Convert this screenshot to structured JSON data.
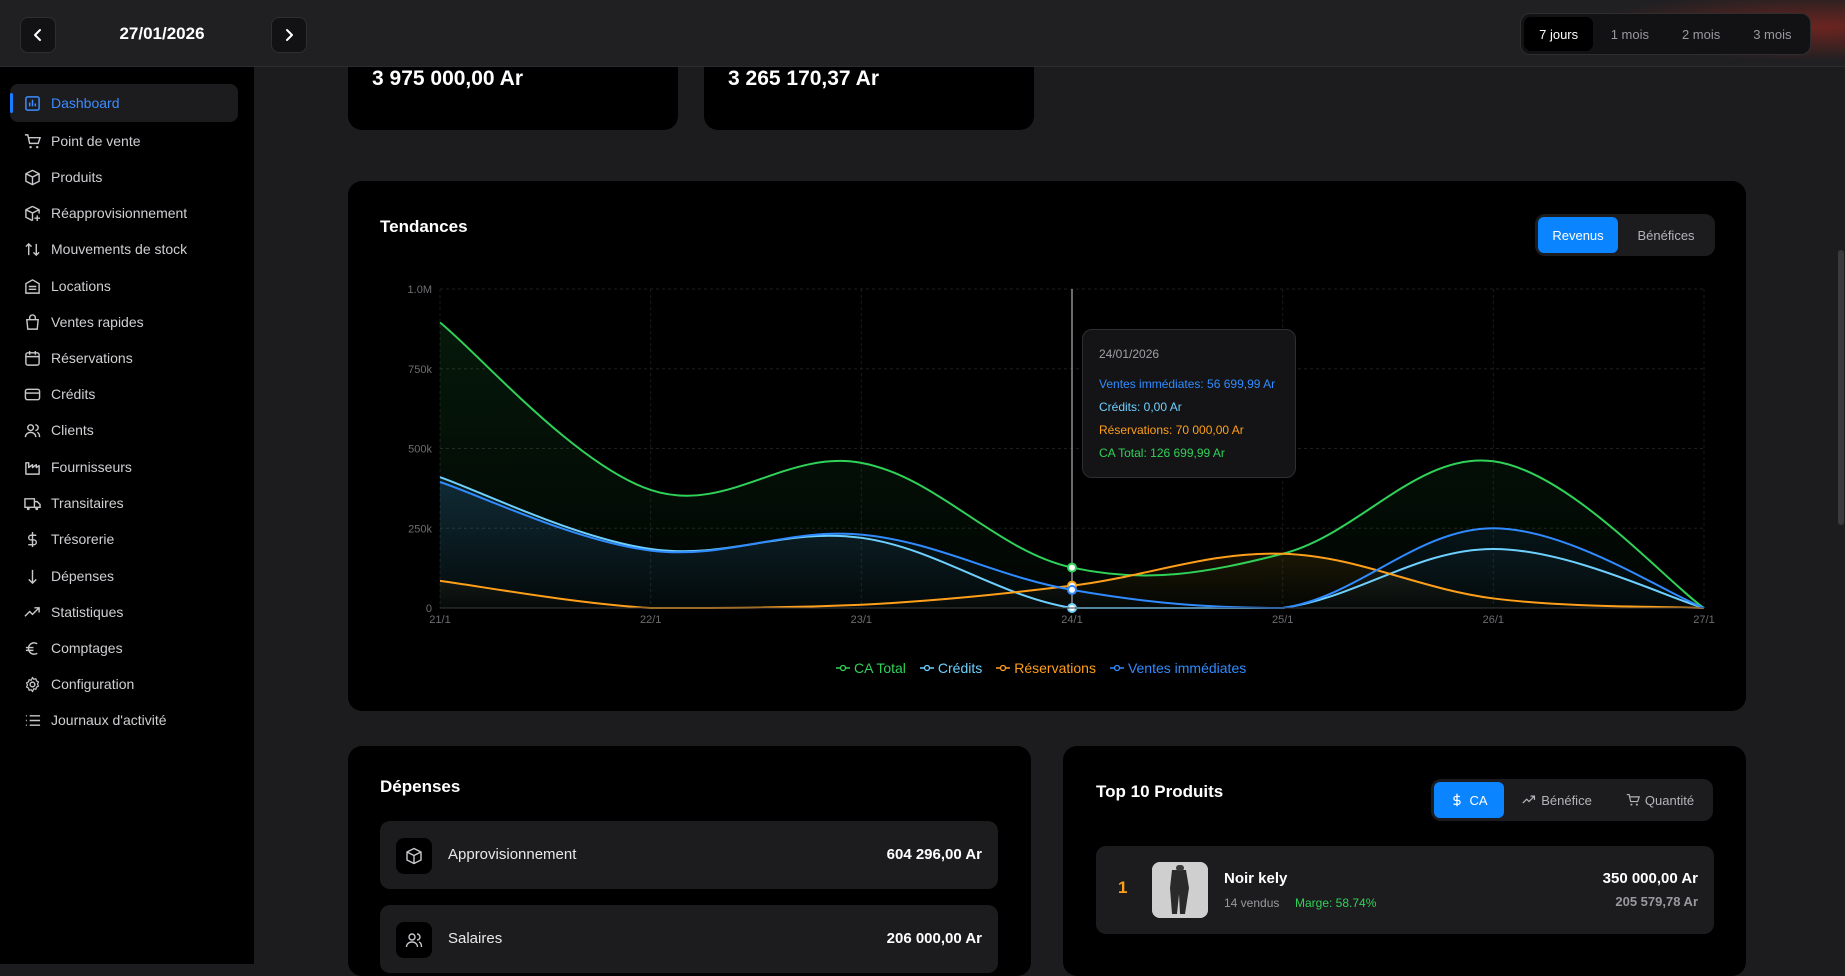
{
  "header": {
    "date": "27/01/2026",
    "ranges": [
      "7 jours",
      "1 mois",
      "2 mois",
      "3 mois"
    ],
    "active_range": "7 jours"
  },
  "sidebar": {
    "items": [
      {
        "label": "Dashboard",
        "icon": "chart-bar-icon"
      },
      {
        "label": "Point de vente",
        "icon": "cart-icon"
      },
      {
        "label": "Produits",
        "icon": "box-icon"
      },
      {
        "label": "Réapprovisionnement",
        "icon": "box-plus-icon"
      },
      {
        "label": "Mouvements de stock",
        "icon": "arrows-up-down-icon"
      },
      {
        "label": "Locations",
        "icon": "building-icon"
      },
      {
        "label": "Ventes rapides",
        "icon": "shopping-bag-icon"
      },
      {
        "label": "Réservations",
        "icon": "calendar-icon"
      },
      {
        "label": "Crédits",
        "icon": "credit-card-icon"
      },
      {
        "label": "Clients",
        "icon": "users-icon"
      },
      {
        "label": "Fournisseurs",
        "icon": "factory-icon"
      },
      {
        "label": "Transitaires",
        "icon": "truck-icon"
      },
      {
        "label": "Trésorerie",
        "icon": "dollar-icon"
      },
      {
        "label": "Dépenses",
        "icon": "arrow-down-icon"
      },
      {
        "label": "Statistiques",
        "icon": "trending-up-icon"
      },
      {
        "label": "Comptages",
        "icon": "euro-icon"
      },
      {
        "label": "Configuration",
        "icon": "gear-icon"
      },
      {
        "label": "Journaux d'activité",
        "icon": "list-icon"
      }
    ]
  },
  "kpis": [
    "3 975 000,00 Ar",
    "3 265 170,37 Ar"
  ],
  "trends": {
    "title": "Tendances",
    "toggle": [
      "Revenus",
      "Bénéfices"
    ],
    "active_toggle": "Revenus",
    "tooltip": {
      "date": "24/01/2026",
      "lines": [
        {
          "text": "Ventes immédiates: 56 699,99 Ar",
          "color": "#2f8bff"
        },
        {
          "text": "Crédits: 0,00 Ar",
          "color": "#6ed0ff"
        },
        {
          "text": "Réservations: 70 000,00 Ar",
          "color": "#ff9f1a"
        },
        {
          "text": "CA Total: 126 699,99 Ar",
          "color": "#30d158"
        }
      ]
    }
  },
  "chart_data": {
    "type": "area",
    "categories": [
      "21/1",
      "22/1",
      "23/1",
      "24/1",
      "25/1",
      "26/1",
      "27/1"
    ],
    "ylim": [
      0,
      1000000
    ],
    "yticks": [
      {
        "value": 0,
        "label": "0"
      },
      {
        "value": 250000,
        "label": "250k"
      },
      {
        "value": 500000,
        "label": "500k"
      },
      {
        "value": 750000,
        "label": "750k"
      },
      {
        "value": 1000000,
        "label": "1.0M"
      }
    ],
    "grid": true,
    "legend_position": "bottom",
    "series": [
      {
        "name": "CA Total",
        "color": "#30d158",
        "values": [
          895000,
          370000,
          455000,
          126699.99,
          170000,
          460000,
          0
        ]
      },
      {
        "name": "Crédits",
        "color": "#6ed0ff",
        "values": [
          410000,
          185000,
          220000,
          0,
          0,
          185000,
          0
        ]
      },
      {
        "name": "Réservations",
        "color": "#ff9f1a",
        "values": [
          85000,
          0,
          10000,
          70000,
          170000,
          30000,
          0
        ]
      },
      {
        "name": "Ventes immédiates",
        "color": "#2f8bff",
        "values": [
          395000,
          180000,
          230000,
          56699.99,
          0,
          250000,
          0
        ]
      }
    ],
    "highlight_index": 3
  },
  "expenses": {
    "title": "Dépenses",
    "rows": [
      {
        "name": "Approvisionnement",
        "amount": "604 296,00 Ar",
        "icon": "box-icon"
      },
      {
        "name": "Salaires",
        "amount": "206 000,00 Ar",
        "icon": "users-icon"
      }
    ]
  },
  "top_products": {
    "title": "Top 10 Produits",
    "toggle": [
      "CA",
      "Bénéfice",
      "Quantité"
    ],
    "active_toggle": "CA",
    "rows": [
      {
        "rank": "1",
        "name": "Noir kely",
        "sold": "14 vendus",
        "margin": "Marge: 58.74%",
        "revenue": "350 000,00 Ar",
        "profit": "205 579,78 Ar"
      }
    ]
  },
  "colors": {
    "accent": "#0a84ff",
    "green": "#30d158",
    "orange": "#ff9f1a",
    "sky": "#6ed0ff",
    "blue": "#2f8bff"
  }
}
